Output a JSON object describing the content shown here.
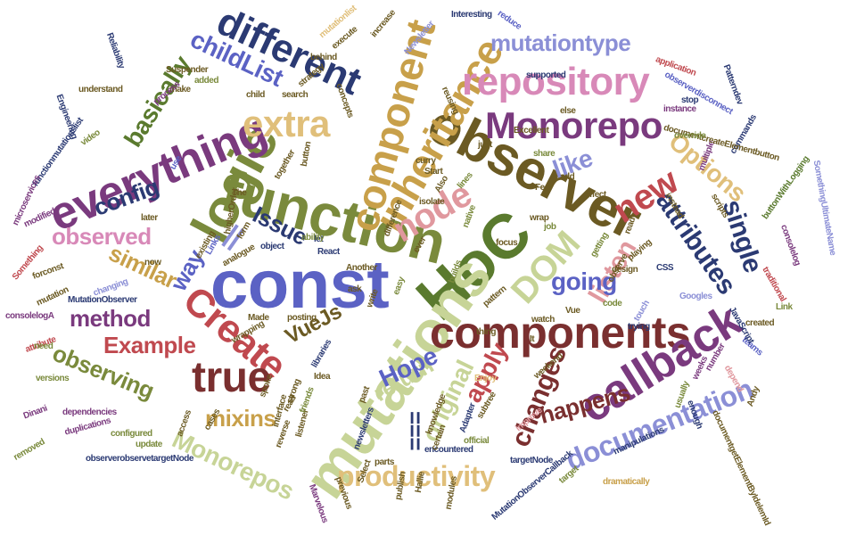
{
  "colors": {
    "olive": "#7a8a3c",
    "navy": "#2b3a73",
    "lavender": "#8b8fd6",
    "purple": "#7a3a7e",
    "tan": "#e0bf7a",
    "brown": "#6b5a23",
    "pink": "#d889b8",
    "red": "#c0494f",
    "sage": "#c7d497",
    "blue": "#5b62c4",
    "maroon": "#7a2f2f",
    "gold": "#c8a04a",
    "green": "#5a7a2e",
    "rose": "#e0989e",
    "dark": "#2a2a4a"
  },
  "words": [
    {
      "text": "const",
      "color": "blue"
    },
    {
      "text": "function",
      "color": "olive"
    },
    {
      "text": "HoC",
      "color": "green"
    },
    {
      "text": "observer",
      "color": "brown"
    },
    {
      "text": "mutations",
      "color": "sage"
    },
    {
      "text": "components",
      "color": "maroon"
    },
    {
      "text": "callback",
      "color": "purple"
    },
    {
      "text": "logic",
      "color": "olive"
    },
    {
      "text": "everything",
      "color": "purple"
    },
    {
      "text": "component",
      "color": "gold"
    },
    {
      "text": "inheritance",
      "color": "gold"
    },
    {
      "text": "repository",
      "color": "pink"
    },
    {
      "text": "Monorepo",
      "color": "purple"
    },
    {
      "text": "different",
      "color": "navy"
    },
    {
      "text": "Create",
      "color": "red"
    },
    {
      "text": "true",
      "color": "maroon"
    },
    {
      "text": "extra",
      "color": "tan"
    },
    {
      "text": "node",
      "color": "rose"
    },
    {
      "text": "DOM",
      "color": "sage"
    },
    {
      "text": "new",
      "color": "red"
    },
    {
      "text": "documentation",
      "color": "lavender"
    },
    {
      "text": "productivity",
      "color": "tan"
    },
    {
      "text": "Monorepos",
      "color": "sage"
    },
    {
      "text": "mutationtype",
      "color": "lavender"
    },
    {
      "text": "childList",
      "color": "blue"
    },
    {
      "text": "basically",
      "color": "green"
    },
    {
      "text": "config",
      "color": "navy"
    },
    {
      "text": "observed",
      "color": "pink"
    },
    {
      "text": "Issue",
      "color": "navy"
    },
    {
      "text": "way",
      "color": "blue"
    },
    {
      "text": "similar",
      "color": "gold"
    },
    {
      "text": "method",
      "color": "purple"
    },
    {
      "text": "Example",
      "color": "red"
    },
    {
      "text": "observing",
      "color": "olive"
    },
    {
      "text": "mixins",
      "color": "gold"
    },
    {
      "text": "listen",
      "color": "rose"
    },
    {
      "text": "going",
      "color": "blue"
    },
    {
      "text": "attributes",
      "color": "navy"
    },
    {
      "text": "single",
      "color": "navy"
    },
    {
      "text": "Options",
      "color": "tan"
    },
    {
      "text": "like",
      "color": "lavender"
    },
    {
      "text": "happens",
      "color": "maroon"
    },
    {
      "text": "changes",
      "color": "maroon"
    },
    {
      "text": "apply",
      "color": "red"
    },
    {
      "text": "return",
      "color": "sage"
    },
    {
      "text": "original",
      "color": "sage"
    },
    {
      "text": "Hope",
      "color": "blue"
    },
    {
      "text": "VueJs",
      "color": "brown"
    },
    {
      "text": "===",
      "color": "navy"
    },
    {
      "text": "||",
      "color": "lavender"
    },
    {
      "text": "Suspender",
      "color": "brown"
    },
    {
      "text": "Reliability",
      "color": "navy"
    },
    {
      "text": "understand",
      "color": "brown"
    },
    {
      "text": "Engineering",
      "color": "navy"
    },
    {
      "text": "functionmutationslist",
      "color": "navy"
    },
    {
      "text": "microservices",
      "color": "purple"
    },
    {
      "text": "modified",
      "color": "purple"
    },
    {
      "text": "Something",
      "color": "red"
    },
    {
      "text": "forconst",
      "color": "brown"
    },
    {
      "text": "MutationObserver",
      "color": "navy"
    },
    {
      "text": "consolelogA",
      "color": "purple"
    },
    {
      "text": "Links",
      "color": "blue"
    },
    {
      "text": "Made",
      "color": "brown"
    },
    {
      "text": "posting",
      "color": "brown"
    },
    {
      "text": "React",
      "color": "navy"
    },
    {
      "text": "libraries",
      "color": "navy"
    },
    {
      "text": "Idea",
      "color": "brown"
    },
    {
      "text": "read",
      "color": "brown"
    },
    {
      "text": "listener",
      "color": "brown"
    },
    {
      "text": "interface",
      "color": "brown"
    },
    {
      "text": "newsletters",
      "color": "navy"
    },
    {
      "text": "parts",
      "color": "brown"
    },
    {
      "text": "encountered",
      "color": "navy"
    },
    {
      "text": "official",
      "color": "olive"
    },
    {
      "text": "knowledge",
      "color": "brown"
    },
    {
      "text": "targetNode",
      "color": "navy"
    },
    {
      "text": "observerobservetargetNode",
      "color": "navy"
    },
    {
      "text": "update",
      "color": "olive"
    },
    {
      "text": "configured",
      "color": "olive"
    },
    {
      "text": "dependencies",
      "color": "purple"
    },
    {
      "text": "versions",
      "color": "olive"
    },
    {
      "text": "duplications",
      "color": "purple"
    },
    {
      "text": "MutationObserverCallback",
      "color": "navy"
    },
    {
      "text": "target",
      "color": "olive"
    },
    {
      "text": "dramatically",
      "color": "gold"
    },
    {
      "text": "manipulations",
      "color": "navy"
    },
    {
      "text": "documentgetElementByIdelemId",
      "color": "brown"
    },
    {
      "text": "enough",
      "color": "navy"
    },
    {
      "text": "depend",
      "color": "rose"
    },
    {
      "text": "number",
      "color": "purple"
    },
    {
      "text": "Andy",
      "color": "brown"
    },
    {
      "text": "teams",
      "color": "blue"
    },
    {
      "text": "created",
      "color": "brown"
    },
    {
      "text": "JavaScript",
      "color": "navy"
    },
    {
      "text": "Link",
      "color": "olive"
    },
    {
      "text": "traditional",
      "color": "red"
    },
    {
      "text": "consolelog",
      "color": "purple"
    },
    {
      "text": "SomethingUltimateName",
      "color": "lavender"
    },
    {
      "text": "buttonWithLogging",
      "color": "green"
    },
    {
      "text": "commands",
      "color": "navy"
    },
    {
      "text": "multiple",
      "color": "purple"
    },
    {
      "text": "documentcreateElementbutton",
      "color": "brown"
    },
    {
      "text": "Patterndev",
      "color": "navy"
    },
    {
      "text": "application",
      "color": "red"
    },
    {
      "text": "observerdisconnect",
      "color": "blue"
    },
    {
      "text": "Newsletter",
      "color": "lavender"
    },
    {
      "text": "reduce",
      "color": "blue"
    },
    {
      "text": "Interesting",
      "color": "navy"
    },
    {
      "text": "increase",
      "color": "brown"
    },
    {
      "text": "mutationlist",
      "color": "tan"
    },
    {
      "text": "execute",
      "color": "brown"
    },
    {
      "text": "behind",
      "color": "brown"
    },
    {
      "text": "strategy",
      "color": "brown"
    },
    {
      "text": "search",
      "color": "brown"
    },
    {
      "text": "child",
      "color": "brown"
    },
    {
      "text": "concepts",
      "color": "brown"
    },
    {
      "text": "added",
      "color": "olive"
    },
    {
      "text": "make",
      "color": "brown"
    },
    {
      "text": "process",
      "color": "purple"
    },
    {
      "text": "video",
      "color": "olive"
    },
    {
      "text": "use",
      "color": "blue"
    },
    {
      "text": "Googles",
      "color": "lavender"
    },
    {
      "text": "CSS",
      "color": "navy"
    },
    {
      "text": "code",
      "color": "olive"
    },
    {
      "text": "watch",
      "color": "brown"
    },
    {
      "text": "Vue",
      "color": "brown"
    },
    {
      "text": "trying",
      "color": "navy"
    },
    {
      "text": "weekend",
      "color": "brown"
    },
    {
      "text": "Adapter",
      "color": "navy"
    },
    {
      "text": "improve",
      "color": "rose"
    },
    {
      "text": "reusing",
      "color": "brown"
    },
    {
      "text": "supported",
      "color": "navy"
    },
    {
      "text": "instance",
      "color": "purple"
    },
    {
      "text": "Start",
      "color": "brown"
    },
    {
      "text": "curry",
      "color": "brown"
    },
    {
      "text": "isolate",
      "color": "brown"
    },
    {
      "text": "effect",
      "color": "brown"
    },
    {
      "text": "playing",
      "color": "brown"
    },
    {
      "text": "getting",
      "color": "olive"
    },
    {
      "text": "design",
      "color": "brown"
    },
    {
      "text": "job",
      "color": "olive"
    },
    {
      "text": "Enjoy",
      "color": "tan"
    },
    {
      "text": "thing",
      "color": "brown"
    },
    {
      "text": "pattern",
      "color": "brown"
    },
    {
      "text": "easy",
      "color": "olive"
    },
    {
      "text": "write",
      "color": "brown"
    },
    {
      "text": "native",
      "color": "olive"
    },
    {
      "text": "higherOrder",
      "color": "brown"
    },
    {
      "text": "object",
      "color": "navy"
    },
    {
      "text": "form",
      "color": "brown"
    },
    {
      "text": "button",
      "color": "brown"
    },
    {
      "text": "together",
      "color": "brown"
    },
    {
      "text": "removed",
      "color": "olive"
    },
    {
      "text": "mutation",
      "color": "brown"
    },
    {
      "text": "attribute",
      "color": "red"
    },
    {
      "text": "changing",
      "color": "lavender"
    },
    {
      "text": "Hallie",
      "color": "brown"
    },
    {
      "text": "publish",
      "color": "brown"
    },
    {
      "text": "modules",
      "color": "brown"
    },
    {
      "text": "previous",
      "color": "brown"
    },
    {
      "text": "Marvelous",
      "color": "purple"
    },
    {
      "text": "weeks",
      "color": "purple"
    },
    {
      "text": "usually",
      "color": "olive"
    },
    {
      "text": "ready",
      "color": "brown"
    },
    {
      "text": "override",
      "color": "olive"
    },
    {
      "text": "scripts",
      "color": "brown"
    },
    {
      "text": "instead",
      "color": "brown"
    },
    {
      "text": "stop",
      "color": "navy"
    },
    {
      "text": "else",
      "color": "brown"
    },
    {
      "text": "wrap",
      "color": "brown"
    },
    {
      "text": "observe",
      "color": "brown"
    },
    {
      "text": "touch",
      "color": "lavender"
    },
    {
      "text": "Excellent",
      "color": "brown"
    },
    {
      "text": "share",
      "color": "olive"
    },
    {
      "text": "add",
      "color": "brown"
    },
    {
      "text": "just",
      "color": "brown"
    },
    {
      "text": "lines",
      "color": "olive"
    },
    {
      "text": "spoke",
      "color": "brown"
    },
    {
      "text": "reverse",
      "color": "brown"
    },
    {
      "text": "friends",
      "color": "olive"
    },
    {
      "text": "wrapping",
      "color": "brown"
    },
    {
      "text": "strong",
      "color": "brown"
    },
    {
      "text": "analogue",
      "color": "brown"
    },
    {
      "text": "Select",
      "color": "brown"
    },
    {
      "text": "access",
      "color": "brown"
    },
    {
      "text": "Dinani",
      "color": "purple"
    },
    {
      "text": "need",
      "color": "olive"
    },
    {
      "text": "later",
      "color": "brown"
    },
    {
      "text": "let",
      "color": "navy"
    },
    {
      "text": "now",
      "color": "brown"
    },
    {
      "text": "existing",
      "color": "brown"
    },
    {
      "text": "ask",
      "color": "brown"
    },
    {
      "text": "ever",
      "color": "brown"
    },
    {
      "text": "certain",
      "color": "brown"
    },
    {
      "text": "past",
      "color": "brown"
    },
    {
      "text": "cases",
      "color": "brown"
    },
    {
      "text": "subtree",
      "color": "brown"
    },
    {
      "text": "difference",
      "color": "brown"
    },
    {
      "text": "builds",
      "color": "olive"
    },
    {
      "text": "Another",
      "color": "brown"
    },
    {
      "text": "ability",
      "color": "olive"
    },
    {
      "text": "The",
      "color": "brown"
    },
    {
      "text": "It",
      "color": "brown"
    },
    {
      "text": "Also",
      "color": "brown"
    },
    {
      "text": "Feel",
      "color": "brown"
    },
    {
      "text": "focus",
      "color": "brown"
    },
    {
      "text": "framework",
      "color": "olive"
    },
    {
      "text": "jump",
      "color": "brown"
    }
  ]
}
